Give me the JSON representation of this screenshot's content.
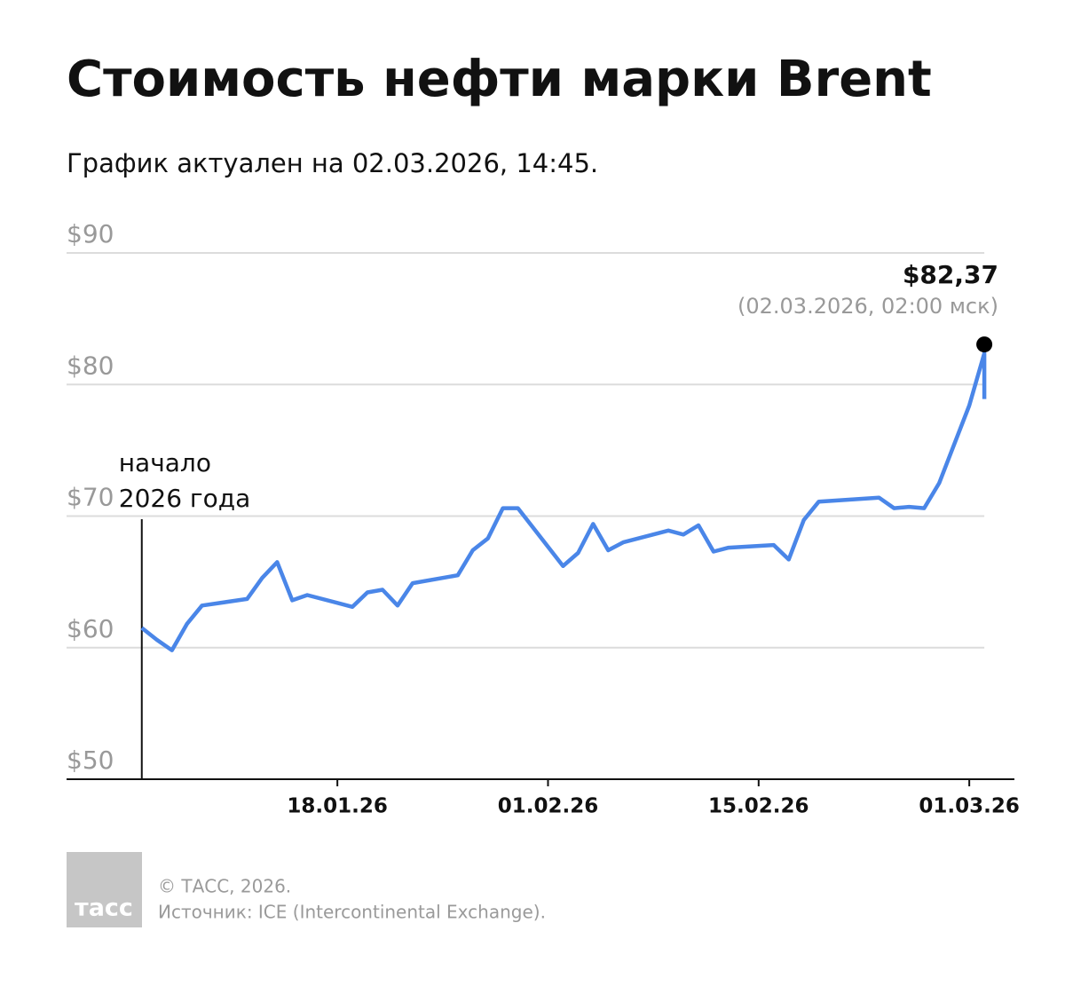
{
  "chart_data": {
    "type": "line",
    "title": "Стоимость нефти марки Brent",
    "subtitle": "График актуален на 02.03.2026, 14:45.",
    "x": [
      "05.01.26",
      "06.01.26",
      "07.01.26",
      "08.01.26",
      "09.01.26",
      "12.01.26",
      "13.01.26",
      "14.01.26",
      "15.01.26",
      "16.01.26",
      "19.01.26",
      "20.01.26",
      "21.01.26",
      "22.01.26",
      "23.01.26",
      "26.01.26",
      "27.01.26",
      "28.01.26",
      "29.01.26",
      "30.01.26",
      "02.02.26",
      "03.02.26",
      "04.02.26",
      "05.02.26",
      "06.02.26",
      "09.02.26",
      "10.02.26",
      "11.02.26",
      "12.02.26",
      "13.02.26",
      "16.02.26",
      "17.02.26",
      "18.02.26",
      "19.02.26",
      "23.02.26",
      "24.02.26",
      "25.02.26",
      "26.02.26",
      "27.02.26",
      "01.03.26",
      "02.03.26",
      "02.03.26"
    ],
    "values": [
      61.5,
      60.6,
      59.8,
      61.8,
      63.2,
      63.7,
      65.3,
      66.5,
      63.6,
      64.0,
      63.1,
      64.2,
      64.4,
      63.2,
      64.9,
      65.5,
      67.4,
      68.3,
      70.6,
      70.6,
      66.2,
      67.2,
      69.4,
      67.4,
      68.0,
      68.9,
      68.6,
      69.3,
      67.3,
      67.6,
      67.8,
      66.7,
      69.7,
      71.1,
      71.4,
      70.6,
      70.7,
      70.6,
      72.5,
      78.4,
      82.37,
      78.9
    ],
    "value_labels": [
      null,
      null,
      null,
      null,
      null,
      null,
      null,
      null,
      null,
      null,
      null,
      null,
      null,
      null,
      null,
      null,
      null,
      null,
      null,
      null,
      null,
      null,
      null,
      null,
      null,
      null,
      null,
      null,
      null,
      null,
      null,
      null,
      null,
      null,
      null,
      null,
      null,
      null,
      null,
      null,
      "$82,37",
      null
    ],
    "point_note": "(02.03.2026, 02:00 мск)",
    "annotation": [
      "начало",
      "2026 года"
    ],
    "color": "#4a86e8",
    "xlim": [
      "31.12.25",
      "04.03.26"
    ],
    "xticks": [
      "18.01.26",
      "01.02.26",
      "15.02.26",
      "01.03.26"
    ],
    "ylim": [
      50,
      90
    ],
    "yticks": [
      {
        "value": 50,
        "label": "$50"
      },
      {
        "value": 60,
        "label": "$60"
      },
      {
        "value": 70,
        "label": "$70"
      },
      {
        "value": 80,
        "label": "$80"
      },
      {
        "value": 90,
        "label": "$90"
      }
    ],
    "grid": true
  },
  "footer": {
    "logo": "тасс",
    "copyright": "© ТАСС, 2026.",
    "source": "Источник: ICE (Intercontinental Exchange)."
  }
}
